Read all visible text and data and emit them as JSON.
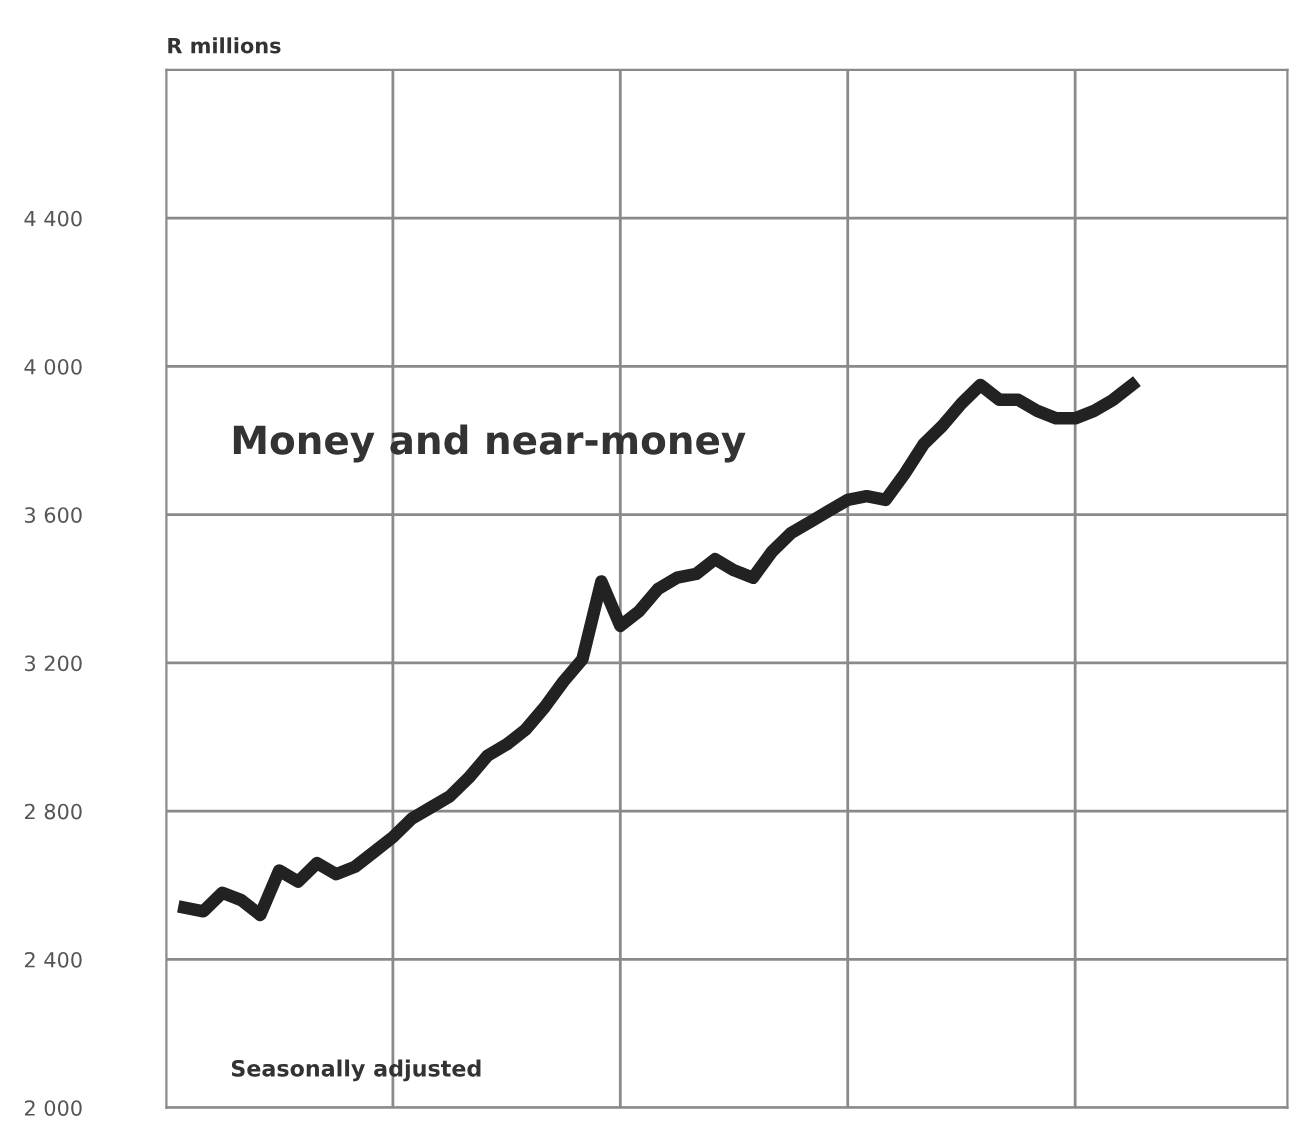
{
  "chart_data": {
    "type": "line",
    "ylabel": "R millions",
    "categories": [
      null,
      null,
      null,
      null,
      null,
      null,
      null,
      null,
      null,
      null,
      null,
      null,
      null,
      null,
      null,
      null,
      null,
      null,
      null,
      null,
      null,
      null,
      null,
      null,
      null,
      null,
      null,
      null,
      null,
      null,
      null,
      null,
      null,
      null,
      null,
      null,
      null,
      null,
      null,
      null,
      null,
      null,
      null,
      null,
      null,
      null,
      null,
      null,
      null,
      null,
      null,
      null,
      null,
      null,
      null,
      null,
      null,
      null,
      null
    ],
    "series": [
      {
        "name": "Money and near-money",
        "color": "#222222",
        "values": [
          2540,
          2530,
          2580,
          2560,
          2520,
          2640,
          2610,
          2660,
          2630,
          2650,
          2690,
          2730,
          2780,
          2810,
          2840,
          2890,
          2950,
          2980,
          3020,
          3080,
          3150,
          3210,
          3420,
          3300,
          3340,
          3400,
          3430,
          3440,
          3480,
          3450,
          3430,
          3500,
          3550,
          3580,
          3610,
          3640,
          3650,
          3640,
          3710,
          3790,
          3840,
          3900,
          3950,
          3910,
          3910,
          3880,
          3860,
          3860,
          3880,
          3910,
          3950,
          null,
          null,
          null,
          null,
          null,
          null,
          null,
          null
        ]
      }
    ],
    "ylim": [
      2000,
      4800
    ],
    "yticks": [
      {
        "value": 2000,
        "label": "2 000"
      },
      {
        "value": 2400,
        "label": "2 400"
      },
      {
        "value": 2800,
        "label": "2 800"
      },
      {
        "value": 3200,
        "label": "3 200"
      },
      {
        "value": 3600,
        "label": "3 600"
      },
      {
        "value": 4000,
        "label": "4 000"
      },
      {
        "value": 4400,
        "label": "4 400"
      }
    ],
    "grid": true,
    "tick_labels": "y",
    "legend": false,
    "marker": "none",
    "line_style": "solid",
    "annotations": [
      "Seasonally adjusted"
    ]
  }
}
